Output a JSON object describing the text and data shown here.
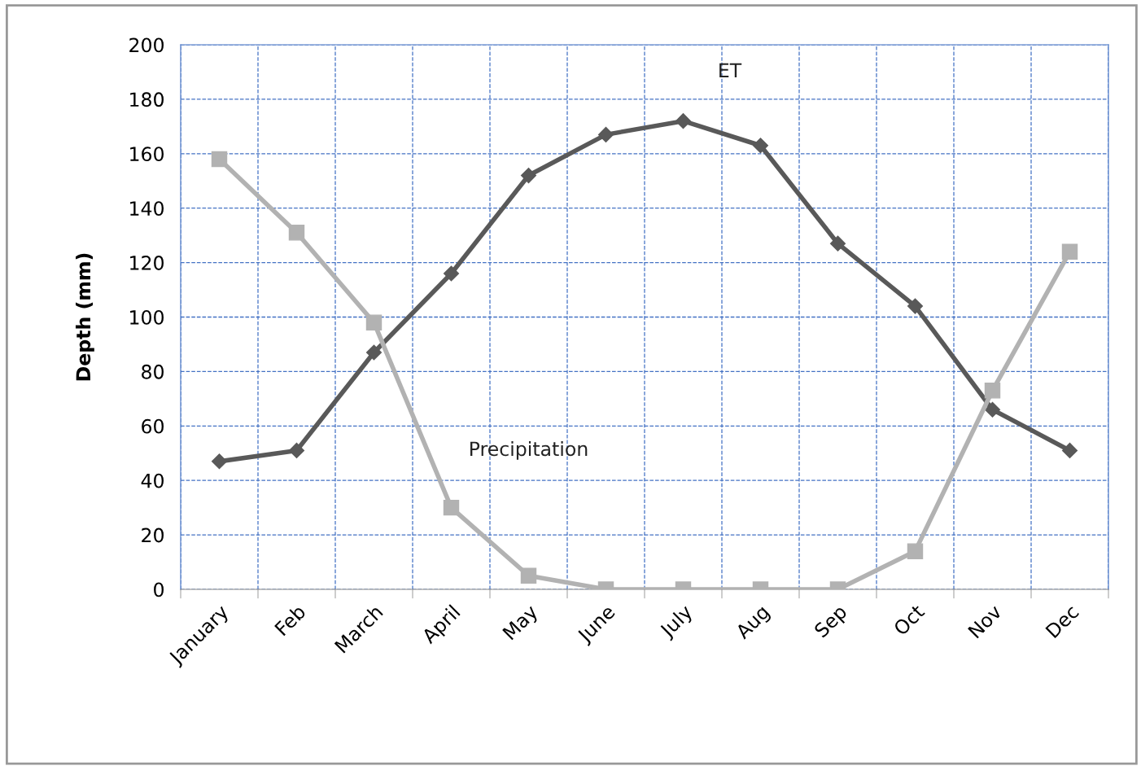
{
  "chart_data": {
    "type": "line",
    "ylabel": "Depth (mm)",
    "categories": [
      "January",
      "Feb",
      "March",
      "April",
      "May",
      "June",
      "July",
      "Aug",
      "Sep",
      "Oct",
      "Nov",
      "Dec"
    ],
    "series": [
      {
        "name": "ET",
        "color": "#595959",
        "marker": "diamond",
        "values": [
          47,
          51,
          87,
          116,
          152,
          167,
          172,
          163,
          127,
          104,
          66,
          51
        ]
      },
      {
        "name": "Precipitation",
        "color": "#b2b2b2",
        "marker": "square",
        "values": [
          158,
          131,
          98,
          30,
          5,
          0,
          0,
          0,
          0,
          14,
          73,
          124
        ]
      }
    ],
    "ylim": [
      0,
      200
    ],
    "yticks": [
      0,
      20,
      40,
      60,
      80,
      100,
      120,
      140,
      160,
      180,
      200
    ],
    "grid": true,
    "legend": false,
    "line_style": "solid"
  }
}
